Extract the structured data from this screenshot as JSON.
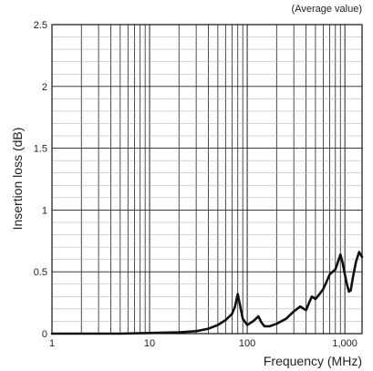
{
  "chart_data": {
    "type": "line",
    "annotation": "(Average value)",
    "xlabel": "Frequency (MHz)",
    "ylabel": "Insertion loss (dB)",
    "x_scale": "log",
    "xlim": [
      1,
      1500
    ],
    "ylim": [
      0,
      2.5
    ],
    "x_tick_labels": [
      {
        "value": 1,
        "label": "1"
      },
      {
        "value": 10,
        "label": "10"
      },
      {
        "value": 100,
        "label": "100"
      },
      {
        "value": 1000,
        "label": "1,000"
      }
    ],
    "y_tick_labels": [
      {
        "value": 0,
        "label": "0"
      },
      {
        "value": 0.5,
        "label": "0.5"
      },
      {
        "value": 1,
        "label": "1"
      },
      {
        "value": 1.5,
        "label": "1.5"
      },
      {
        "value": 2,
        "label": "2"
      },
      {
        "value": 2.5,
        "label": "2.5"
      }
    ],
    "grid": true,
    "series": [
      {
        "color": "#111111",
        "x": [
          1,
          5,
          10,
          20,
          30,
          40,
          50,
          60,
          70,
          75,
          80,
          85,
          90,
          100,
          115,
          130,
          140,
          150,
          170,
          200,
          250,
          300,
          350,
          380,
          400,
          430,
          460,
          500,
          550,
          600,
          650,
          700,
          800,
          900,
          950,
          1000,
          1050,
          1100,
          1150,
          1200,
          1300,
          1400,
          1500
        ],
        "y": [
          0,
          0,
          0.005,
          0.01,
          0.02,
          0.04,
          0.07,
          0.11,
          0.16,
          0.22,
          0.32,
          0.22,
          0.12,
          0.07,
          0.1,
          0.14,
          0.09,
          0.06,
          0.06,
          0.08,
          0.12,
          0.18,
          0.22,
          0.2,
          0.19,
          0.25,
          0.3,
          0.28,
          0.32,
          0.36,
          0.42,
          0.48,
          0.52,
          0.64,
          0.57,
          0.48,
          0.4,
          0.34,
          0.35,
          0.44,
          0.58,
          0.66,
          0.62
        ]
      }
    ]
  }
}
